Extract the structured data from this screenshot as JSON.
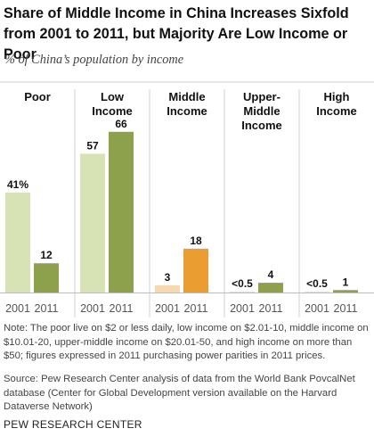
{
  "title": "Share of Middle Income in China Increases Sixfold from 2001 to 2011, but Majority Are Low Income or Poor",
  "subtitle": "% of China’s population by income",
  "note": "Note: The poor live on $2 or less daily, low income on $2.01-10, middle income on $10.01-20, upper-middle income on $20.01-50, and high income on more than $50; figures expressed in 2011 purchasing power parities in 2011 prices.",
  "source": "Source: Pew Research Center analysis of data from the World Bank PovcalNet database (Center for Global Development version available on the Harvard Dataverse Network)",
  "credit": "PEW RESEARCH CENTER",
  "chart_data": {
    "type": "bar",
    "title": "Share of Middle Income in China Increases Sixfold from 2001 to 2011, but Majority Are Low Income or Poor",
    "ylabel": "% of China’s population by income",
    "ylim": [
      0,
      70
    ],
    "x": [
      "2001",
      "2011"
    ],
    "grid": false,
    "groups": [
      {
        "name_lines": [
          "Poor"
        ],
        "values": [
          41,
          12
        ],
        "labels": [
          "41%",
          "12"
        ],
        "colors": [
          "#d7e3b5",
          "#8da04b"
        ]
      },
      {
        "name_lines": [
          "Low",
          "Income"
        ],
        "values": [
          57,
          66
        ],
        "labels": [
          "57",
          "66"
        ],
        "colors": [
          "#d7e3b5",
          "#8da04b"
        ]
      },
      {
        "name_lines": [
          "Middle",
          "Income"
        ],
        "values": [
          3,
          18
        ],
        "labels": [
          "3",
          "18"
        ],
        "colors": [
          "#f8d8ae",
          "#ea9d31"
        ]
      },
      {
        "name_lines": [
          "Upper-",
          "Middle",
          "Income"
        ],
        "values": [
          0.3,
          4
        ],
        "labels": [
          "<0.5",
          "4"
        ],
        "colors": [
          "#d7e3b5",
          "#8da04b"
        ]
      },
      {
        "name_lines": [
          "High",
          "Income"
        ],
        "values": [
          0.2,
          1
        ],
        "labels": [
          "<0.5",
          "1"
        ],
        "colors": [
          "#d7e3b5",
          "#8da04b"
        ]
      }
    ]
  }
}
